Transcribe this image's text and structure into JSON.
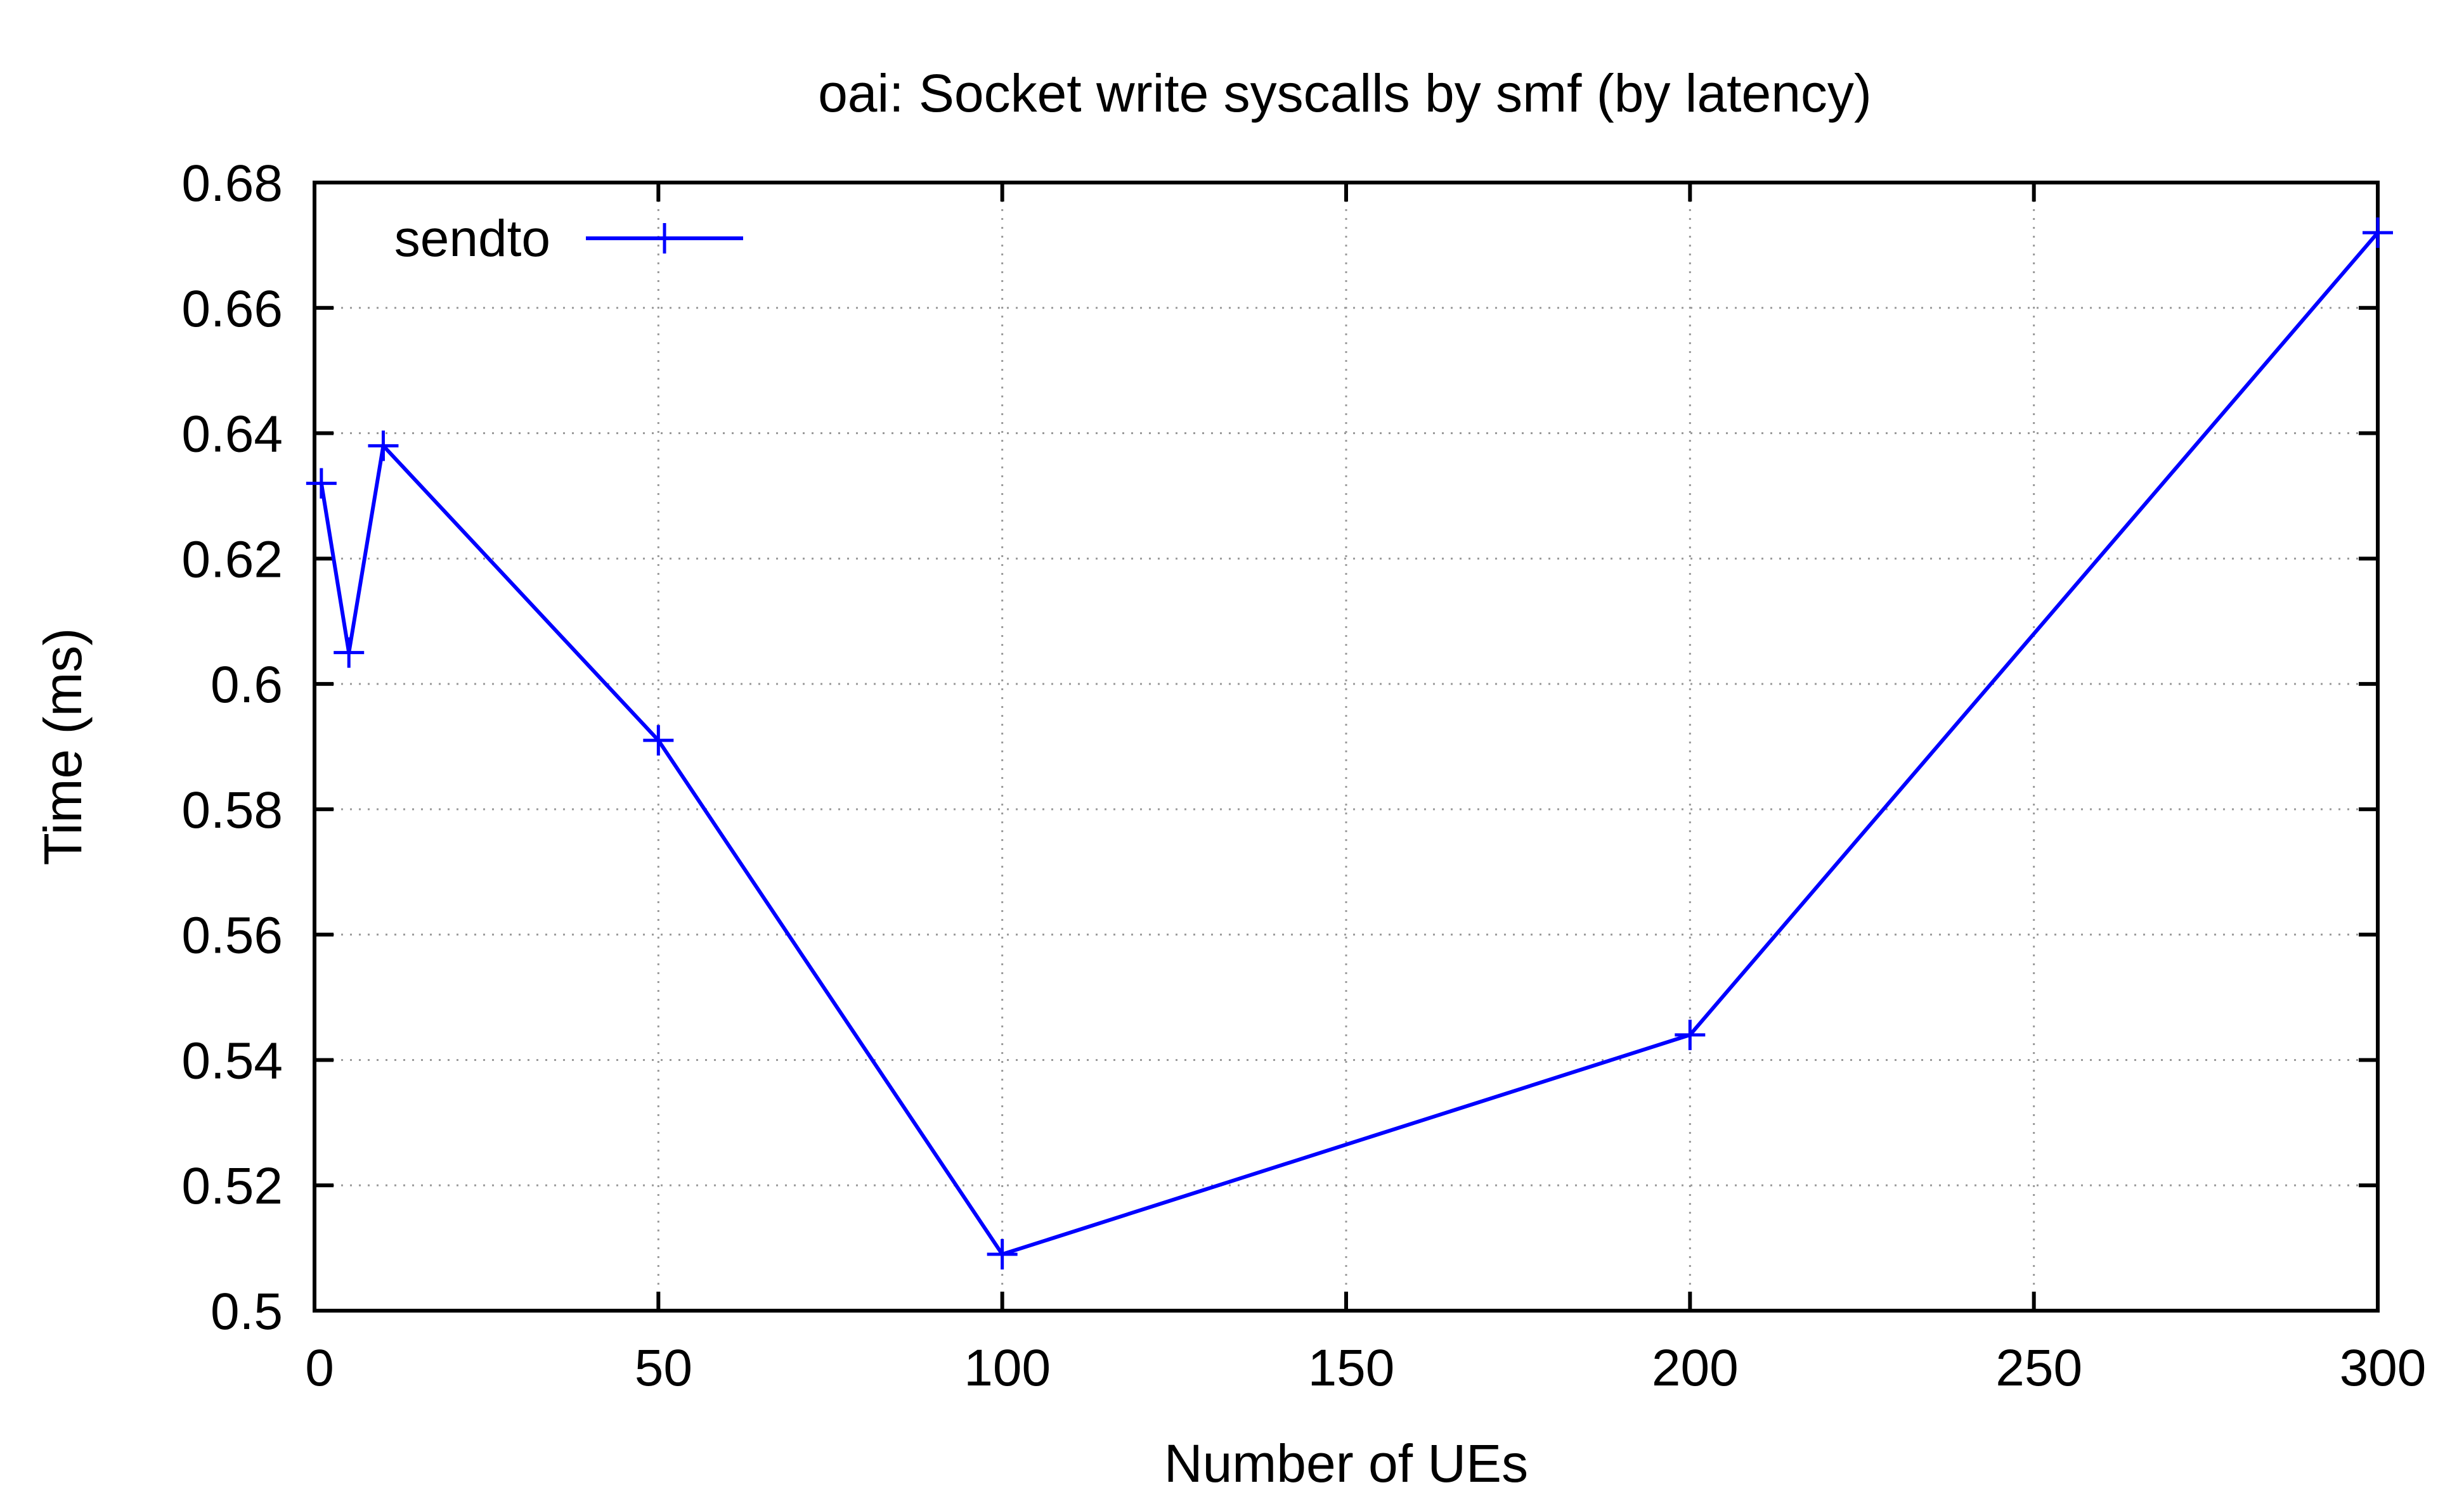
{
  "chart_data": {
    "type": "line",
    "title": "oai: Socket write syscalls by smf (by latency)",
    "xlabel": "Number of UEs",
    "ylabel": "Time (ms)",
    "xlim": [
      0,
      300
    ],
    "ylim": [
      0.5,
      0.68
    ],
    "x_ticks": [
      "0",
      "50",
      "100",
      "150",
      "200",
      "250",
      "300"
    ],
    "y_ticks": [
      "0.5",
      "0.52",
      "0.54",
      "0.56",
      "0.58",
      "0.6",
      "0.62",
      "0.64",
      "0.66",
      "0.68"
    ],
    "grid": true,
    "legend_position": "top-left",
    "series": [
      {
        "name": "sendto",
        "color": "#0000ff",
        "marker": "plus",
        "x": [
          1,
          5,
          10,
          50,
          100,
          200,
          300
        ],
        "y": [
          0.632,
          0.605,
          0.638,
          0.591,
          0.509,
          0.544,
          0.672
        ]
      }
    ]
  }
}
